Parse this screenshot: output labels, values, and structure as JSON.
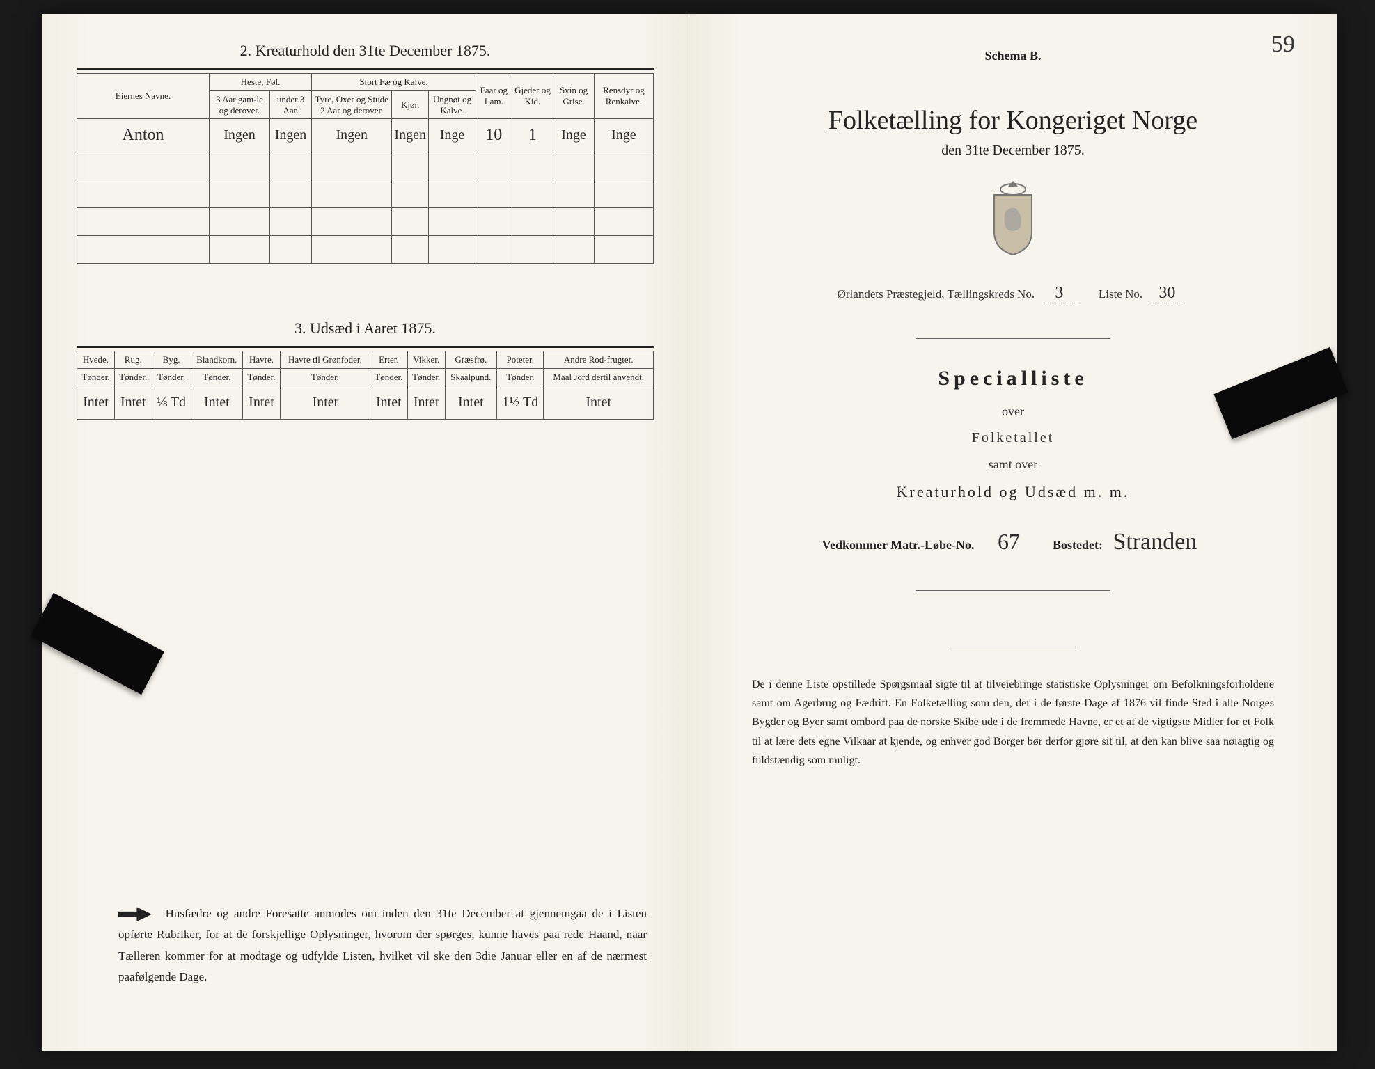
{
  "page_number": "59",
  "left_page": {
    "section2_title": "2.  Kreaturhold den 31te December 1875.",
    "table2": {
      "owner_header": "Eiernes Navne.",
      "group_heste": "Heste, Føl.",
      "group_fae": "Stort Fæ og Kalve.",
      "col_heste_a": "3 Aar gam-le og derover.",
      "col_heste_b": "under 3 Aar.",
      "col_fae_a": "Tyre, Oxer og Stude 2 Aar og derover.",
      "col_fae_b": "Kjør.",
      "col_fae_c": "Ungnøt og Kalve.",
      "col_faar": "Faar og Lam.",
      "col_gjeder": "Gjeder og Kid.",
      "col_svin": "Svin og Grise.",
      "col_rensdyr": "Rensdyr og Renkalve.",
      "row1_owner": "Anton",
      "row1": {
        "heste_a": "Ingen",
        "heste_b": "Ingen",
        "fae_a": "Ingen",
        "fae_b": "Ingen",
        "fae_c": "Inge",
        "faar": "10",
        "gjeder": "1",
        "svin": "Inge",
        "rensdyr": "Inge"
      }
    },
    "section3_title": "3.  Udsæd i Aaret 1875.",
    "table3": {
      "cols": [
        "Hvede.",
        "Rug.",
        "Byg.",
        "Blandkorn.",
        "Havre.",
        "Havre til Grønfoder.",
        "Erter.",
        "Vikker.",
        "Græsfrø.",
        "Poteter.",
        "Andre Rod-frugter."
      ],
      "units": [
        "Tønder.",
        "Tønder.",
        "Tønder.",
        "Tønder.",
        "Tønder.",
        "Tønder.",
        "Tønder.",
        "Tønder.",
        "Skaalpund.",
        "Tønder.",
        "Maal Jord dertil anvendt."
      ],
      "row": [
        "Intet",
        "Intet",
        "⅛ Td",
        "Intet",
        "Intet",
        "Intet",
        "Intet",
        "Intet",
        "Intet",
        "1½ Td",
        "Intet"
      ]
    },
    "footnote": "Husfædre og andre Foresatte anmodes om inden den 31te December at gjennemgaa de i Listen opførte Rubriker, for at de forskjellige Oplysninger, hvorom der spørges, kunne haves paa rede Haand, naar Tælleren kommer for at modtage og udfylde Listen, hvilket vil ske den 3die Januar eller en af de nærmest paafølgende Dage."
  },
  "right_page": {
    "schema": "Schema B.",
    "title": "Folketælling for Kongeriget Norge",
    "subtitle": "den 31te December 1875.",
    "meta_prefix": "Ørlandets Præstegjeld,  Tællingskreds No.",
    "meta_kreds": "3",
    "meta_liste_label": "Liste No.",
    "meta_liste": "30",
    "specialliste": "Specialliste",
    "over": "over",
    "folketallet": "Folketallet",
    "samt": "samt over",
    "kreatur": "Kreaturhold og Udsæd m. m.",
    "vedkommer_label": "Vedkommer Matr.-Løbe-No.",
    "matr_no": "67",
    "bostedet_label": "Bostedet:",
    "bostedet": "Stranden",
    "body": "De i denne Liste opstillede Spørgsmaal sigte til at tilveiebringe statistiske Oplysninger om Befolkningsforholdene samt om Agerbrug og Fædrift.  En Folketælling som den, der i de første Dage af 1876 vil finde Sted i alle Norges Bygder og Byer samt ombord paa de norske Skibe ude i de fremmede Havne, er et af de vigtigste Midler for et Folk til at lære dets egne Vilkaar at kjende, og enhver god Borger bør derfor gjøre sit til, at den kan blive saa nøiagtig og fuldstændig som muligt."
  }
}
